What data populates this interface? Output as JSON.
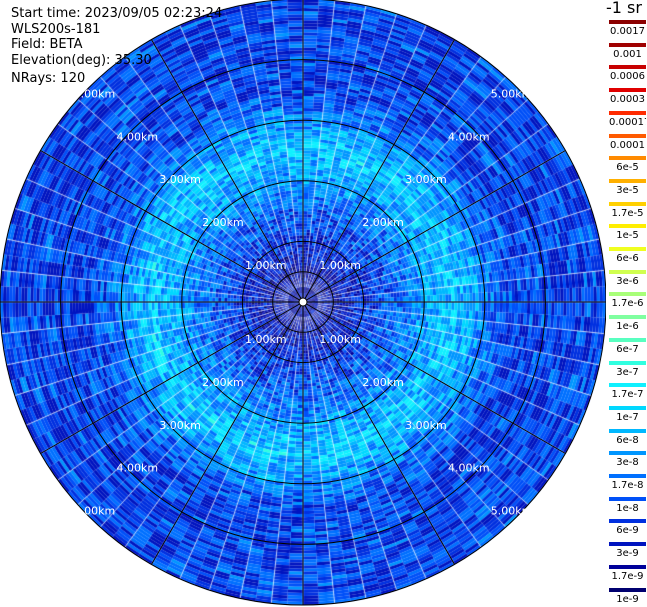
{
  "info": {
    "start_time": "Start time: 2023/09/05 02:23:24",
    "device": "WLS200s-181",
    "field": "Field: BETA",
    "elevation": "Elevation(deg): 35.30",
    "nrays": "NRays: 120"
  },
  "colors": {
    "background": "#ffffff",
    "grid": "#000000",
    "range_label": "#ffffff"
  },
  "chart_data": {
    "type": "heatmap",
    "projection": "polar-ppi",
    "field": "BETA",
    "n_rays": 120,
    "range_max_km": 5.0,
    "range_rings_km": [
      1.0,
      2.0,
      3.0,
      4.0,
      5.0
    ],
    "range_labels": [
      "1.00km",
      "2.00km",
      "3.00km",
      "4.00km",
      "5.00km"
    ],
    "typical_value_by_range": [
      {
        "range_km": 0.5,
        "value": 3e-09
      },
      {
        "range_km": 1.5,
        "value": 1.7e-08
      },
      {
        "range_km": 2.5,
        "value": 1e-07
      },
      {
        "range_km": 3.5,
        "value": 1e-08
      },
      {
        "range_km": 4.5,
        "value": 1e-08
      }
    ],
    "colorbar": {
      "unit": "-1 sr",
      "labels": [
        "0.0017",
        "0.001",
        "0.0006",
        "0.0003",
        "0.00017",
        "0.0001",
        "6e-5",
        "3e-5",
        "1.7e-5",
        "1e-5",
        "6e-6",
        "3e-6",
        "1.7e-6",
        "1e-6",
        "6e-7",
        "3e-7",
        "1.7e-7",
        "1e-7",
        "6e-8",
        "3e-8",
        "1.7e-8",
        "1e-8",
        "6e-9",
        "3e-9",
        "1.7e-9",
        "1e-9"
      ],
      "colors": [
        "#8b0000",
        "#a00000",
        "#c80000",
        "#e00000",
        "#ff2a00",
        "#ff5a00",
        "#ff8a00",
        "#ffb000",
        "#ffd000",
        "#ffee00",
        "#f0ff20",
        "#d0ff50",
        "#a8ff78",
        "#80ffa0",
        "#58ffc0",
        "#30ffe0",
        "#10f0ff",
        "#00d8ff",
        "#00b8ff",
        "#0096ff",
        "#0070ff",
        "#0050f8",
        "#0030e0",
        "#0014c0",
        "#00009a",
        "#000070"
      ]
    }
  }
}
